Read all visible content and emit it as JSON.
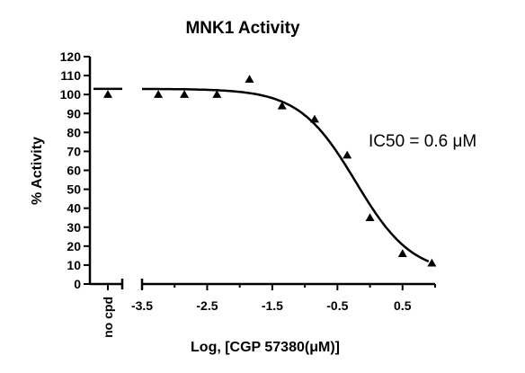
{
  "chart_data": {
    "type": "scatter",
    "title": "MNK1 Activity",
    "ylabel": "% Activity",
    "xlabel": "Log, [CGP 57380(μM)]",
    "annotation": "IC50 = 0.6 μM",
    "ylim": [
      0,
      120
    ],
    "yticks": [
      0,
      10,
      20,
      30,
      40,
      50,
      60,
      70,
      80,
      90,
      100,
      110,
      120
    ],
    "xlim": [
      -3.5,
      1.0
    ],
    "xticks": [
      -3.5,
      -2.5,
      -1.5,
      -0.5,
      0.5
    ],
    "xtick_labels": [
      "-3.5",
      "-2.5",
      "-1.5",
      "-0.5",
      "0.5"
    ],
    "control": {
      "label": "no cpd",
      "value": 100,
      "line_value": 103
    },
    "points": [
      {
        "x": -3.25,
        "y": 100
      },
      {
        "x": -2.85,
        "y": 100
      },
      {
        "x": -2.35,
        "y": 100
      },
      {
        "x": -1.85,
        "y": 108
      },
      {
        "x": -1.35,
        "y": 94
      },
      {
        "x": -0.85,
        "y": 87
      },
      {
        "x": -0.35,
        "y": 68
      },
      {
        "x": 0.0,
        "y": 35
      },
      {
        "x": 0.5,
        "y": 16
      },
      {
        "x": 0.95,
        "y": 11
      }
    ],
    "fit": {
      "top": 103,
      "bottom": 5,
      "log_ic50": -0.22,
      "hill": 1.0,
      "x_start": -3.5,
      "x_end": 0.9
    },
    "grid": false,
    "legend": "none",
    "marker": "triangle",
    "color": "#000000"
  }
}
